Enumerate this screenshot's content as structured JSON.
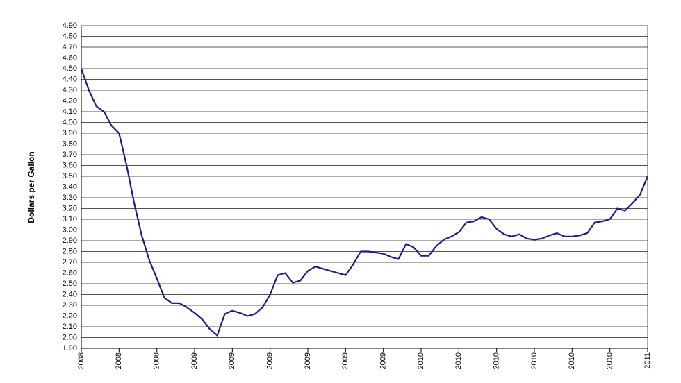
{
  "chart_data": {
    "type": "line",
    "y_label": "Dollars per Gallon",
    "categories": [
      "2008",
      null,
      null,
      null,
      null,
      "2008",
      null,
      null,
      null,
      null,
      "2008",
      null,
      null,
      null,
      null,
      "2009",
      null,
      null,
      null,
      null,
      "2009",
      null,
      null,
      null,
      null,
      "2009",
      null,
      null,
      null,
      null,
      "2009",
      null,
      null,
      null,
      null,
      "2009",
      null,
      null,
      null,
      null,
      "2009",
      null,
      null,
      null,
      null,
      "2010",
      null,
      null,
      null,
      null,
      "2010",
      null,
      null,
      null,
      null,
      "2010",
      null,
      null,
      null,
      null,
      "2010",
      null,
      null,
      null,
      null,
      "2010",
      null,
      null,
      null,
      null,
      "2010",
      null,
      null,
      null,
      null,
      "2011"
    ],
    "values": [
      4.5,
      4.3,
      4.15,
      4.1,
      3.97,
      3.9,
      3.6,
      3.25,
      2.95,
      2.72,
      2.55,
      2.37,
      2.32,
      2.32,
      2.28,
      2.23,
      2.17,
      2.08,
      2.02,
      2.22,
      2.25,
      2.23,
      2.2,
      2.22,
      2.28,
      2.4,
      2.58,
      2.6,
      2.51,
      2.53,
      2.62,
      2.66,
      2.64,
      2.62,
      2.6,
      2.58,
      2.68,
      2.8,
      2.8,
      2.79,
      2.78,
      2.75,
      2.73,
      2.87,
      2.84,
      2.76,
      2.76,
      2.85,
      2.91,
      2.94,
      2.98,
      3.07,
      3.08,
      3.12,
      3.1,
      3.01,
      2.96,
      2.94,
      2.96,
      2.92,
      2.91,
      2.92,
      2.95,
      2.97,
      2.94,
      2.94,
      2.95,
      2.97,
      3.07,
      3.08,
      3.1,
      3.2,
      3.18,
      3.25,
      3.33,
      3.5
    ],
    "color": "#1c1c8c",
    "ylim": [
      1.9,
      4.9
    ],
    "yticks": [
      {
        "value": 1.9,
        "label": "1.90"
      },
      {
        "value": 2.0,
        "label": "2.00"
      },
      {
        "value": 2.1,
        "label": "2.10"
      },
      {
        "value": 2.2,
        "label": "2.20"
      },
      {
        "value": 2.3,
        "label": "2.30"
      },
      {
        "value": 2.4,
        "label": "2.40"
      },
      {
        "value": 2.5,
        "label": "2.50"
      },
      {
        "value": 2.6,
        "label": "2.60"
      },
      {
        "value": 2.7,
        "label": "2.70"
      },
      {
        "value": 2.8,
        "label": "2.80"
      },
      {
        "value": 2.9,
        "label": "2.90"
      },
      {
        "value": 3.0,
        "label": "3.00"
      },
      {
        "value": 3.1,
        "label": "3.10"
      },
      {
        "value": 3.2,
        "label": "3.20"
      },
      {
        "value": 3.3,
        "label": "3.30"
      },
      {
        "value": 3.4,
        "label": "3.40"
      },
      {
        "value": 3.5,
        "label": "3.50"
      },
      {
        "value": 3.6,
        "label": "3.60"
      },
      {
        "value": 3.7,
        "label": "3.70"
      },
      {
        "value": 3.8,
        "label": "3.80"
      },
      {
        "value": 3.9,
        "label": "3.90"
      },
      {
        "value": 4.0,
        "label": "4.00"
      },
      {
        "value": 4.1,
        "label": "4.10"
      },
      {
        "value": 4.2,
        "label": "4.20"
      },
      {
        "value": 4.3,
        "label": "4.30"
      },
      {
        "value": 4.4,
        "label": "4.40"
      },
      {
        "value": 4.5,
        "label": "4.50"
      },
      {
        "value": 4.6,
        "label": "4.60"
      },
      {
        "value": 4.7,
        "label": "4.70"
      },
      {
        "value": 4.8,
        "label": "4.80"
      },
      {
        "value": 4.9,
        "label": "4.90"
      }
    ],
    "grid": true
  }
}
